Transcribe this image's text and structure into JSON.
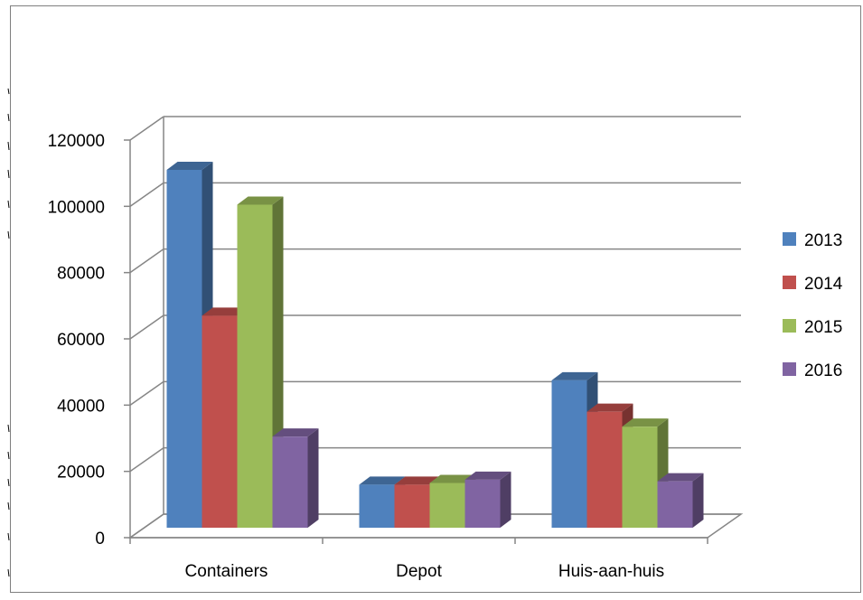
{
  "chart_data": {
    "type": "bar",
    "title": "",
    "xlabel": "",
    "ylabel": "",
    "categories": [
      "Containers",
      "Depot",
      "Huis-aan-huis"
    ],
    "series": [
      {
        "name": "2013",
        "color": "#4F81BD",
        "values": [
          108000,
          13000,
          44500
        ]
      },
      {
        "name": "2014",
        "color": "#C0504D",
        "values": [
          64000,
          13000,
          35000
        ]
      },
      {
        "name": "2015",
        "color": "#9BBB59",
        "values": [
          97500,
          13500,
          30500
        ]
      },
      {
        "name": "2016",
        "color": "#8064A2",
        "values": [
          27500,
          14500,
          14000
        ]
      }
    ],
    "ylim": [
      0,
      120000
    ],
    "yticks": [
      "0",
      "20000",
      "40000",
      "60000",
      "80000",
      "100000",
      "120000"
    ],
    "grid": true,
    "legend": "right",
    "style": "3d-clustered-column"
  }
}
